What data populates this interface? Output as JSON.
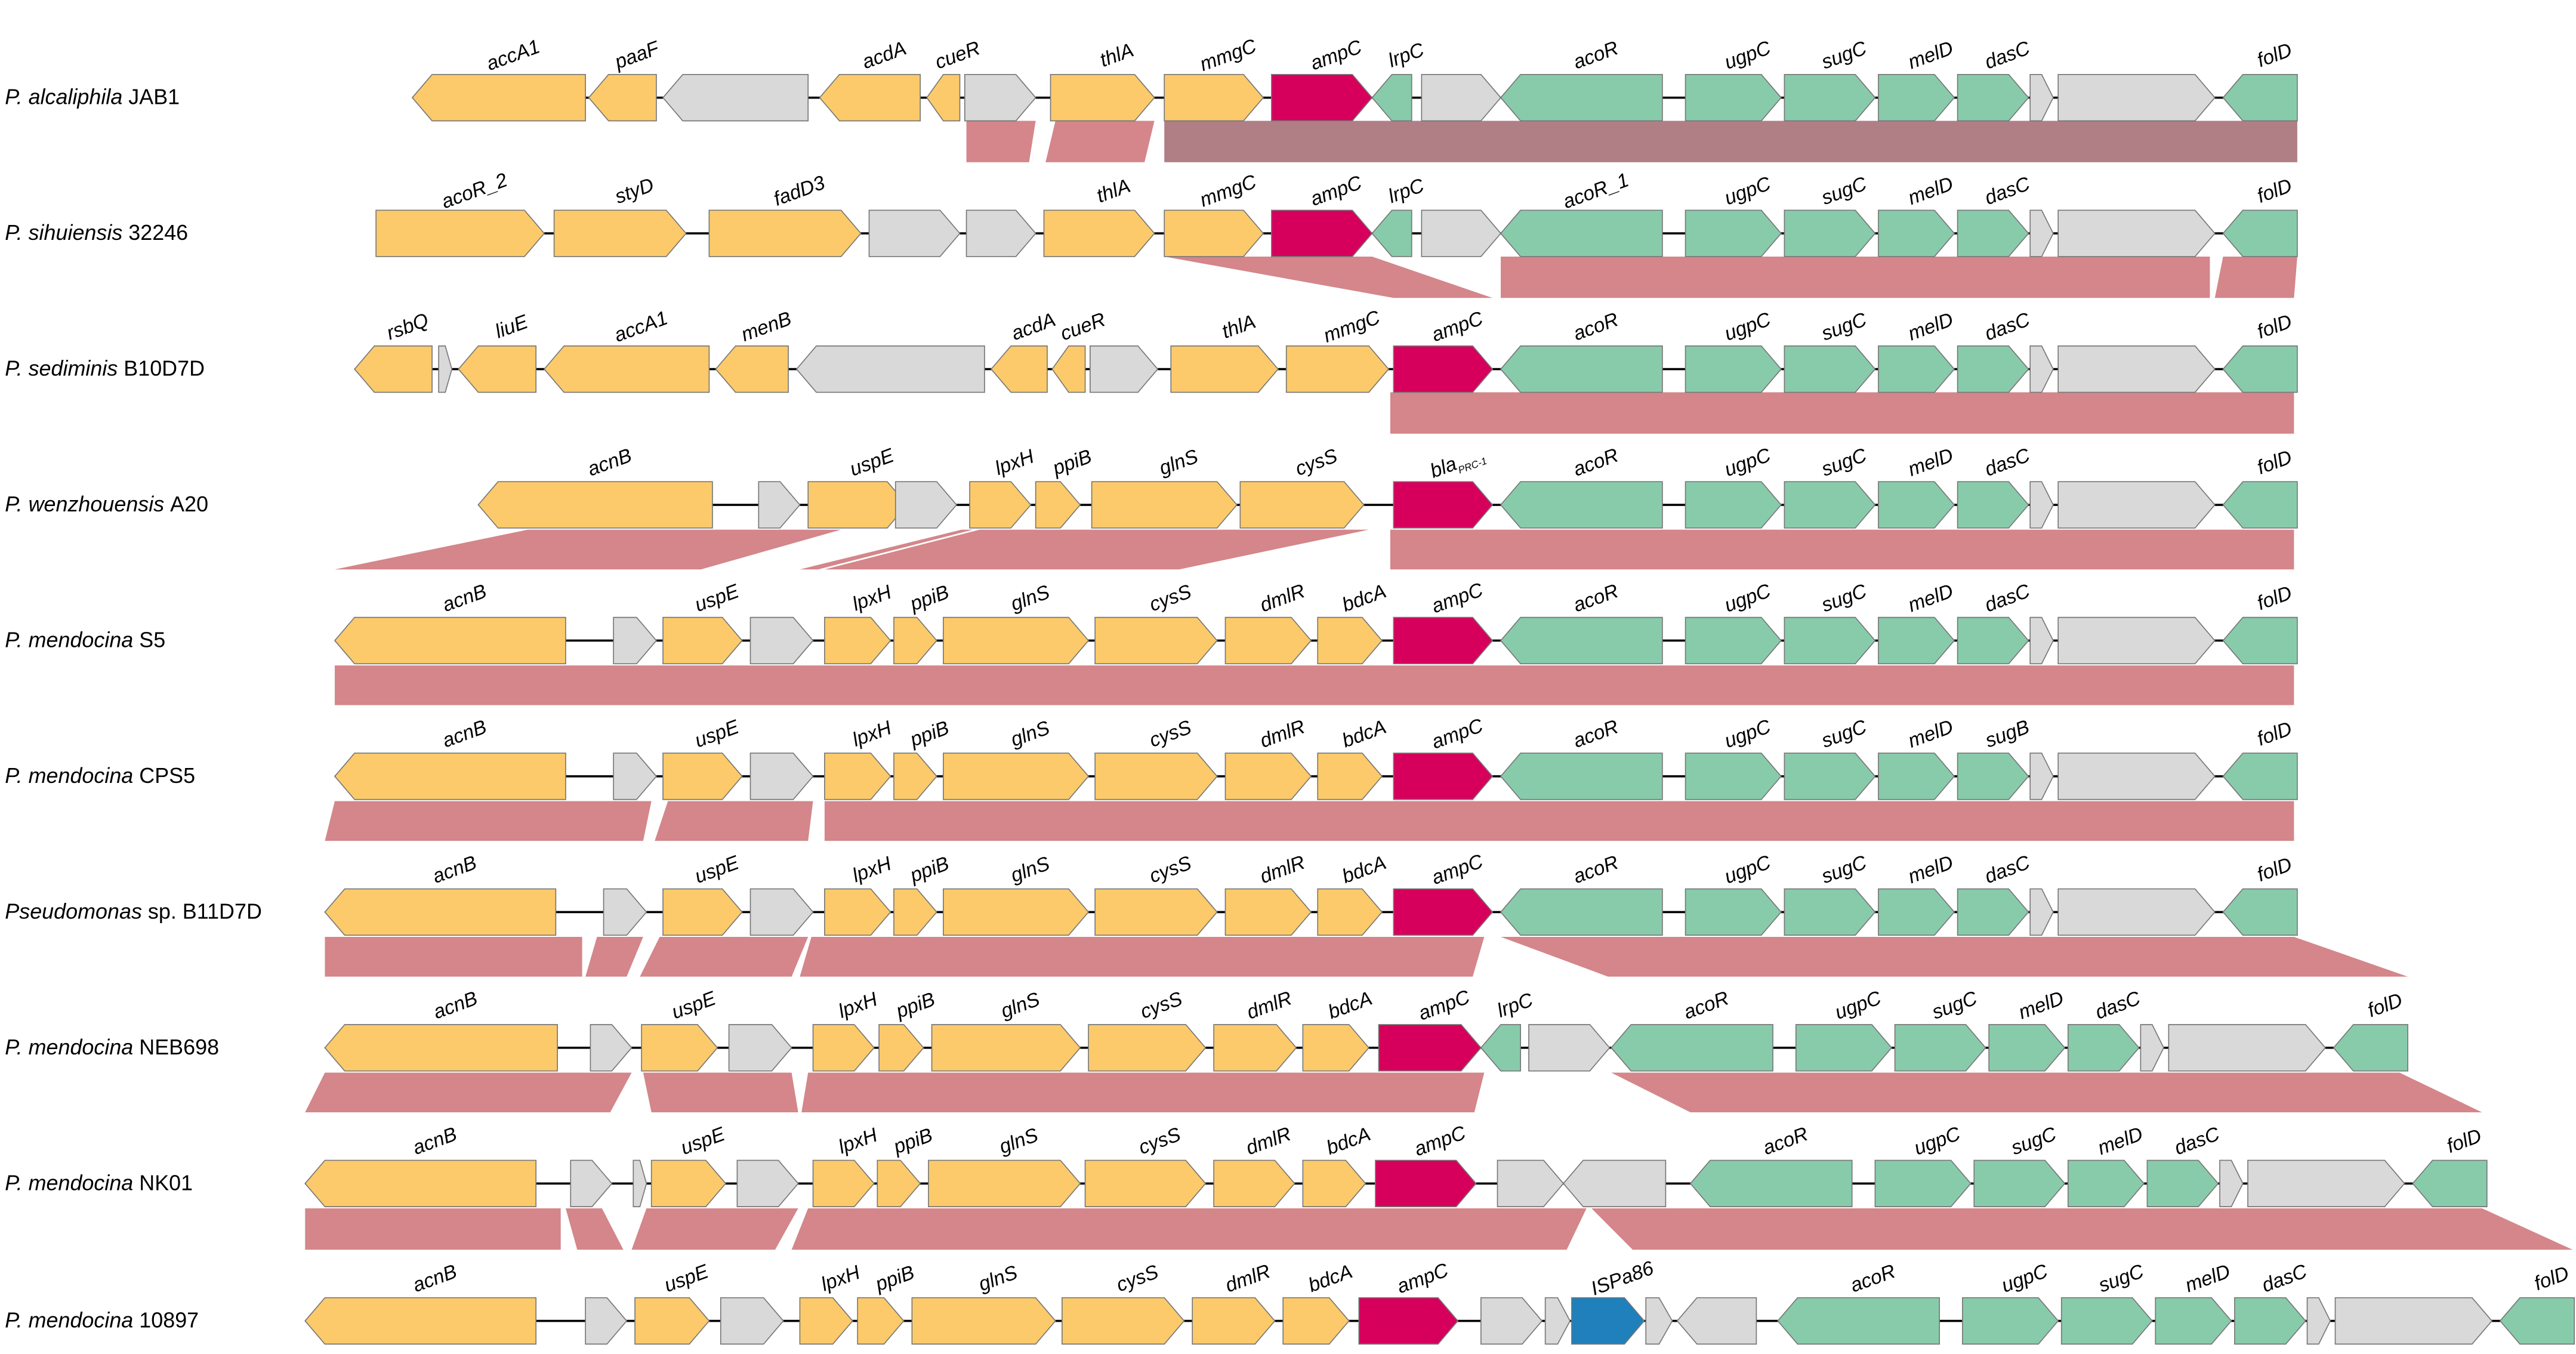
{
  "rows": [
    {
      "species": "P. alcaliphila",
      "strain": "JAB1",
      "genes": [
        "accA1",
        "paaF",
        "acdA",
        "cueR",
        "thlA",
        "mmgC",
        "ampC",
        "lrpC",
        "acoR",
        "ugpC",
        "sugC",
        "melD",
        "dasC",
        "folD"
      ]
    },
    {
      "species": "P. sihuiensis",
      "strain": "32246",
      "genes": [
        "acoR_2",
        "styD",
        "fadD3",
        "thlA",
        "mmgC",
        "ampC",
        "lrpC",
        "acoR_1",
        "ugpC",
        "sugC",
        "melD",
        "dasC",
        "folD"
      ]
    },
    {
      "species": "P. sediminis",
      "strain": "B10D7D",
      "genes": [
        "rsbQ",
        "liuE",
        "accA1",
        "menB",
        "acdA",
        "cueR",
        "thlA",
        "mmgC",
        "ampC",
        "acoR",
        "ugpC",
        "sugC",
        "melD",
        "dasC",
        "folD"
      ]
    },
    {
      "species": "P. wenzhouensis",
      "strain": "A20",
      "genes": [
        "acnB",
        "uspE",
        "lpxH",
        "ppiB",
        "glnS",
        "cysS",
        {
          "name": "bla",
          "subscript": "PRC-1"
        },
        "acoR",
        "ugpC",
        "sugC",
        "melD",
        "dasC",
        "folD"
      ]
    },
    {
      "species": "P. mendocina",
      "strain": "S5",
      "genes": [
        "acnB",
        "uspE",
        "lpxH",
        "ppiB",
        "glnS",
        "cysS",
        "dmlR",
        "bdcA",
        "ampC",
        "acoR",
        "ugpC",
        "sugC",
        "melD",
        "dasC",
        "folD"
      ]
    },
    {
      "species": "P. mendocina",
      "strain": "CPS5",
      "genes": [
        "acnB",
        "uspE",
        "lpxH",
        "ppiB",
        "glnS",
        "cysS",
        "dmlR",
        "bdcA",
        "ampC",
        "acoR",
        "ugpC",
        "sugC",
        "melD",
        "sugB",
        "folD"
      ]
    },
    {
      "species": "Pseudomonas",
      "strain": "sp. B11D7D",
      "genes": [
        "acnB",
        "uspE",
        "lpxH",
        "ppiB",
        "glnS",
        "cysS",
        "dmlR",
        "bdcA",
        "ampC",
        "acoR",
        "ugpC",
        "sugC",
        "melD",
        "dasC",
        "folD"
      ]
    },
    {
      "species": "P. mendocina",
      "strain": "NEB698",
      "genes": [
        "acnB",
        "uspE",
        "lpxH",
        "ppiB",
        "glnS",
        "cysS",
        "dmlR",
        "bdcA",
        "ampC",
        "lrpC",
        "acoR",
        "ugpC",
        "sugC",
        "melD",
        "dasC",
        "folD"
      ]
    },
    {
      "species": "P. mendocina",
      "strain": "NK01",
      "genes": [
        "acnB",
        "uspE",
        "lpxH",
        "ppiB",
        "glnS",
        "cysS",
        "dmlR",
        "bdcA",
        "ampC",
        "acoR",
        "ugpC",
        "sugC",
        "melD",
        "dasC",
        "folD"
      ]
    },
    {
      "species": "P. mendocina",
      "strain": "10897",
      "genes": [
        "acnB",
        "uspE",
        "lpxH",
        "ppiB",
        "glnS",
        "cysS",
        "dmlR",
        "bdcA",
        "ampC",
        "ISPa86",
        "acoR",
        "ugpC",
        "sugC",
        "melD",
        "dasC",
        "folD"
      ]
    }
  ]
}
